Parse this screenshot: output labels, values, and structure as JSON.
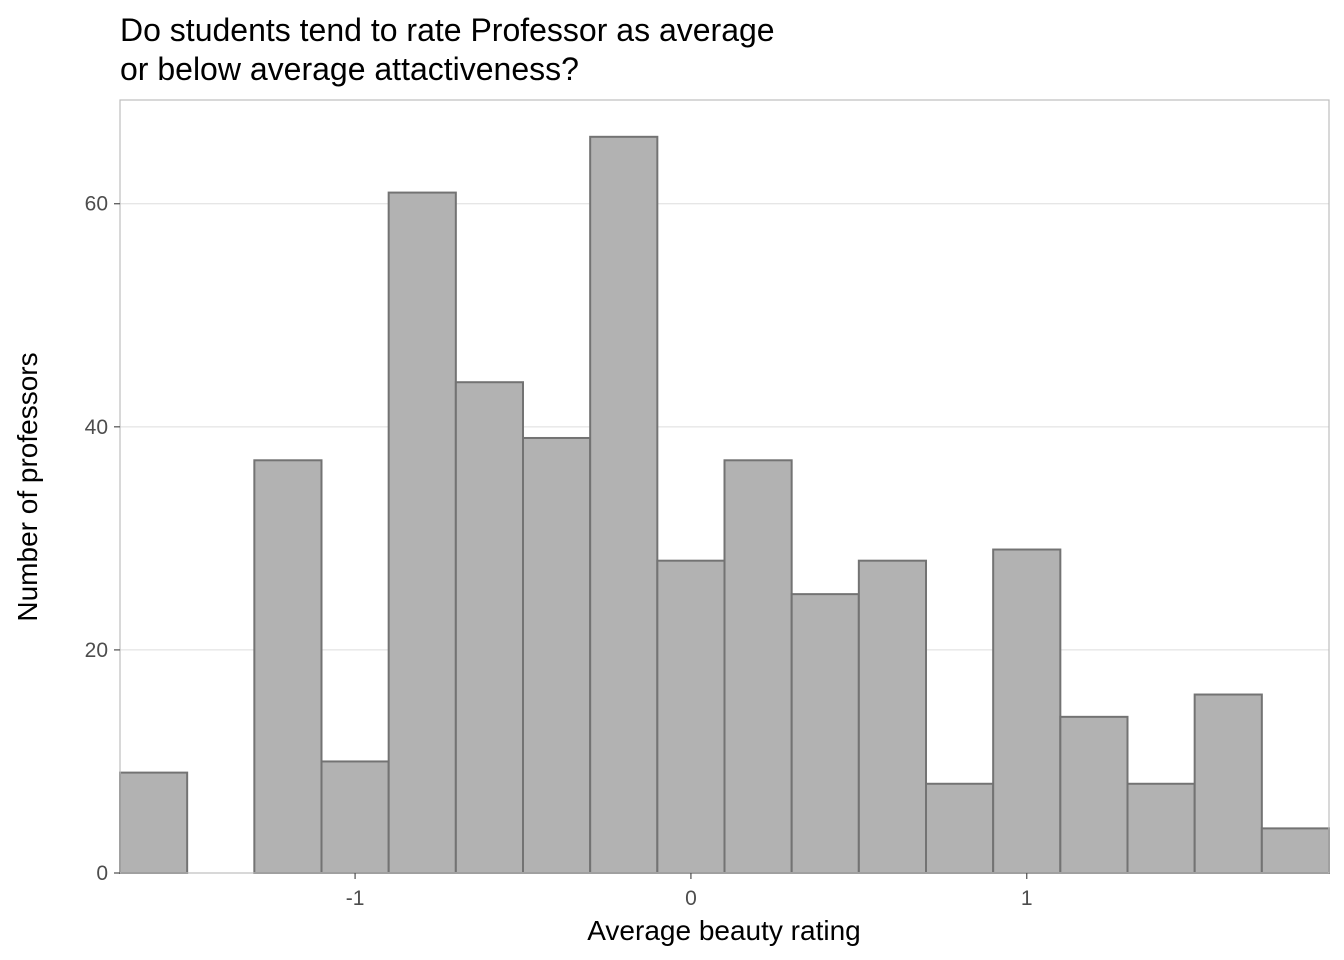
{
  "chart_data": {
    "type": "bar",
    "title_lines": [
      "Do students tend to rate Professor as average",
      "or below average attactiveness?"
    ],
    "xlabel": "Average beauty rating",
    "ylabel": "Number of professors",
    "bin_width": 0.2,
    "bins": [
      {
        "x0": -1.7,
        "x1": -1.5,
        "count": 9
      },
      {
        "x0": -1.5,
        "x1": -1.3,
        "count": 0
      },
      {
        "x0": -1.3,
        "x1": -1.1,
        "count": 37
      },
      {
        "x0": -1.1,
        "x1": -0.9,
        "count": 10
      },
      {
        "x0": -0.9,
        "x1": -0.7,
        "count": 61
      },
      {
        "x0": -0.7,
        "x1": -0.5,
        "count": 44
      },
      {
        "x0": -0.5,
        "x1": -0.3,
        "count": 39
      },
      {
        "x0": -0.3,
        "x1": -0.1,
        "count": 66
      },
      {
        "x0": -0.1,
        "x1": 0.1,
        "count": 28
      },
      {
        "x0": 0.1,
        "x1": 0.3,
        "count": 37
      },
      {
        "x0": 0.3,
        "x1": 0.5,
        "count": 25
      },
      {
        "x0": 0.5,
        "x1": 0.7,
        "count": 28
      },
      {
        "x0": 0.7,
        "x1": 0.9,
        "count": 8
      },
      {
        "x0": 0.9,
        "x1": 1.1,
        "count": 29
      },
      {
        "x0": 1.1,
        "x1": 1.3,
        "count": 14
      },
      {
        "x0": 1.3,
        "x1": 1.5,
        "count": 8
      },
      {
        "x0": 1.5,
        "x1": 1.7,
        "count": 16
      },
      {
        "x0": 1.7,
        "x1": 1.9,
        "count": 4
      }
    ],
    "xlim": [
      -1.7,
      1.9
    ],
    "ylim": [
      0,
      69.3
    ],
    "x_ticks": [
      {
        "value": -1,
        "label": "-1"
      },
      {
        "value": 0,
        "label": "0"
      },
      {
        "value": 1,
        "label": "1"
      }
    ],
    "y_ticks": [
      {
        "value": 0,
        "label": "0"
      },
      {
        "value": 20,
        "label": "20"
      },
      {
        "value": 40,
        "label": "40"
      },
      {
        "value": 60,
        "label": "60"
      }
    ],
    "grid": "horizontal major",
    "legend": "none",
    "colors": {
      "bar_fill": "#b2b2b2",
      "bar_outline": "#737373",
      "grid": "#dedede",
      "panel_border": "#bdbdbd",
      "tick_text": "#4d4d4d"
    }
  }
}
